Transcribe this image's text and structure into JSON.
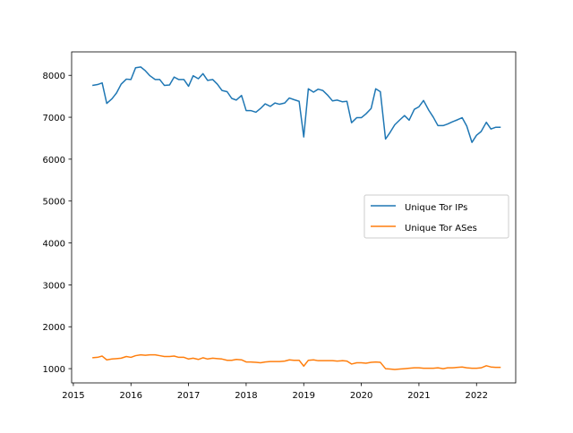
{
  "chart_data": {
    "type": "line",
    "title": "",
    "xlabel": "",
    "ylabel": "",
    "xlim": [
      2014.97,
      2022.68
    ],
    "ylim": [
      660,
      8560
    ],
    "x_ticks": [
      2015,
      2016,
      2017,
      2018,
      2019,
      2020,
      2021,
      2022
    ],
    "y_ticks": [
      1000,
      2000,
      3000,
      4000,
      5000,
      6000,
      7000,
      8000
    ],
    "grid": false,
    "legend": {
      "placement": "center-right"
    },
    "series": [
      {
        "name": "Unique Tor IPs",
        "color": "#1f77b4",
        "x": [
          2015.33,
          2015.42,
          2015.5,
          2015.58,
          2015.67,
          2015.75,
          2015.83,
          2015.92,
          2016.0,
          2016.08,
          2016.17,
          2016.25,
          2016.33,
          2016.42,
          2016.5,
          2016.58,
          2016.67,
          2016.75,
          2016.83,
          2016.92,
          2017.0,
          2017.08,
          2017.17,
          2017.25,
          2017.33,
          2017.42,
          2017.5,
          2017.58,
          2017.67,
          2017.75,
          2017.83,
          2017.92,
          2018.0,
          2018.08,
          2018.17,
          2018.25,
          2018.33,
          2018.42,
          2018.5,
          2018.58,
          2018.67,
          2018.75,
          2018.83,
          2018.92,
          2019.0,
          2019.08,
          2019.17,
          2019.25,
          2019.33,
          2019.42,
          2019.5,
          2019.58,
          2019.67,
          2019.75,
          2019.83,
          2019.92,
          2020.0,
          2020.08,
          2020.17,
          2020.25,
          2020.33,
          2020.42,
          2020.5,
          2020.58,
          2020.67,
          2020.75,
          2020.83,
          2020.92,
          2021.0,
          2021.08,
          2021.17,
          2021.25,
          2021.33,
          2021.42,
          2021.5,
          2021.58,
          2021.67,
          2021.75,
          2021.83,
          2021.92,
          2022.0,
          2022.08,
          2022.17,
          2022.25,
          2022.33,
          2022.42
        ],
        "y": [
          7760,
          7780,
          7820,
          7330,
          7440,
          7580,
          7790,
          7910,
          7900,
          8180,
          8200,
          8110,
          7990,
          7900,
          7900,
          7760,
          7770,
          7960,
          7900,
          7900,
          7740,
          7990,
          7920,
          8040,
          7880,
          7900,
          7790,
          7640,
          7610,
          7450,
          7410,
          7520,
          7160,
          7160,
          7120,
          7210,
          7320,
          7260,
          7340,
          7310,
          7340,
          7460,
          7420,
          7380,
          6530,
          7680,
          7600,
          7670,
          7640,
          7520,
          7390,
          7410,
          7370,
          7380,
          6870,
          6990,
          6990,
          7080,
          7210,
          7680,
          7610,
          6480,
          6640,
          6820,
          6940,
          7040,
          6930,
          7190,
          7250,
          7400,
          7170,
          7000,
          6800,
          6800,
          6840,
          6890,
          6940,
          6990,
          6790,
          6400,
          6570,
          6660,
          6880,
          6720,
          6760,
          6760
        ]
      },
      {
        "name": "Unique Tor ASes",
        "color": "#ff7f0e",
        "x": [
          2015.33,
          2015.42,
          2015.5,
          2015.58,
          2015.67,
          2015.75,
          2015.83,
          2015.92,
          2016.0,
          2016.08,
          2016.17,
          2016.25,
          2016.33,
          2016.42,
          2016.5,
          2016.58,
          2016.67,
          2016.75,
          2016.83,
          2016.92,
          2017.0,
          2017.08,
          2017.17,
          2017.25,
          2017.33,
          2017.42,
          2017.5,
          2017.58,
          2017.67,
          2017.75,
          2017.83,
          2017.92,
          2018.0,
          2018.08,
          2018.17,
          2018.25,
          2018.33,
          2018.42,
          2018.5,
          2018.58,
          2018.67,
          2018.75,
          2018.83,
          2018.92,
          2019.0,
          2019.08,
          2019.17,
          2019.25,
          2019.33,
          2019.42,
          2019.5,
          2019.58,
          2019.67,
          2019.75,
          2019.83,
          2019.92,
          2020.0,
          2020.08,
          2020.17,
          2020.25,
          2020.33,
          2020.42,
          2020.5,
          2020.58,
          2020.67,
          2020.75,
          2020.83,
          2020.92,
          2021.0,
          2021.08,
          2021.17,
          2021.25,
          2021.33,
          2021.42,
          2021.5,
          2021.58,
          2021.67,
          2021.75,
          2021.83,
          2021.92,
          2022.0,
          2022.08,
          2022.17,
          2022.25,
          2022.33,
          2022.42
        ],
        "y": [
          1260,
          1270,
          1300,
          1210,
          1230,
          1240,
          1250,
          1290,
          1270,
          1310,
          1330,
          1320,
          1330,
          1330,
          1310,
          1290,
          1290,
          1300,
          1270,
          1270,
          1230,
          1250,
          1220,
          1260,
          1230,
          1250,
          1240,
          1230,
          1200,
          1200,
          1220,
          1210,
          1160,
          1160,
          1150,
          1140,
          1160,
          1170,
          1170,
          1170,
          1180,
          1210,
          1200,
          1200,
          1060,
          1200,
          1210,
          1190,
          1190,
          1190,
          1190,
          1180,
          1190,
          1180,
          1110,
          1140,
          1140,
          1130,
          1150,
          1160,
          1150,
          1000,
          990,
          980,
          990,
          1000,
          1010,
          1020,
          1020,
          1010,
          1010,
          1010,
          1020,
          1000,
          1020,
          1020,
          1030,
          1040,
          1020,
          1010,
          1010,
          1020,
          1070,
          1040,
          1030,
          1030
        ]
      }
    ]
  }
}
